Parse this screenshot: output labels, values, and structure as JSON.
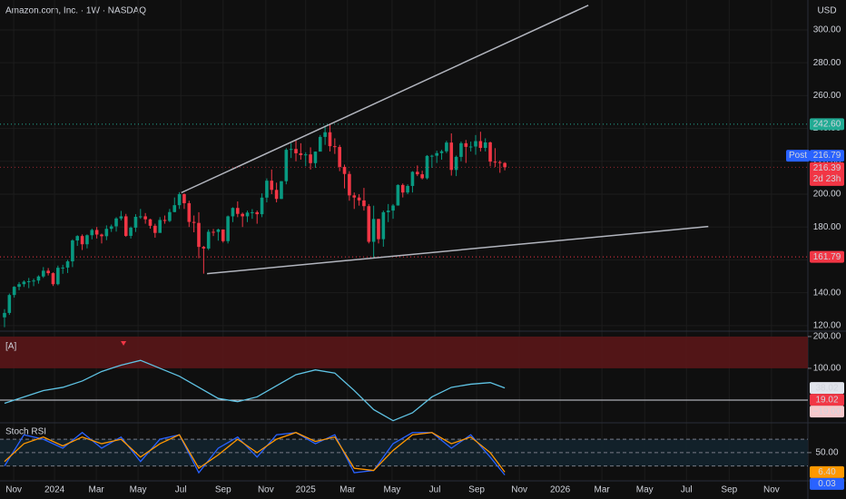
{
  "chart_data": {
    "type": "candlestick",
    "title": "Amazon.com, Inc. · 1W · NASDAQ",
    "currency": "USD",
    "up_color": "#089981",
    "down_color": "#f23645",
    "grid": true,
    "open": [
      125,
      127.7,
      138.6,
      143.6,
      145.2,
      146.7,
      147.0,
      147.4,
      149.9,
      153.4,
      151.9,
      145.2,
      155.2,
      155.3,
      159.1,
      171.8,
      174.5,
      169.5,
      175.0,
      178.2,
      175.4,
      174.4,
      178.9,
      180.4,
      185.2,
      186.5,
      174.6,
      179.6,
      186.2,
      186.5,
      184.7,
      180.75,
      176.4,
      184.3,
      183.7,
      189.1,
      193.3,
      200.0,
      194.5,
      183.1,
      182.5,
      167.9,
      166.9,
      177.1,
      177.0,
      178.5,
      171.4,
      186.5,
      191.6,
      188.0,
      186.5,
      188.8,
      189.0,
      187.8,
      197.9,
      208.2,
      202.6,
      197.1,
      207.9,
      227.0,
      227.5,
      224.9,
      223.75,
      224.2,
      218.9,
      225.9,
      234.85,
      237.7,
      229.2,
      228.7,
      216.6,
      212.3,
      199.25,
      197.95,
      196.2,
      192.7,
      171.0,
      184.9,
      172.6,
      189.0,
      190.0,
      193.1,
      205.6,
      201.0,
      205.0,
      213.6,
      212.1,
      209.7,
      223.3,
      223.4,
      225.0,
      226.1,
      231.4,
      214.75,
      222.7,
      231.0,
      228.8,
      229.0,
      232.3,
      228.15,
      231.5,
      219.8,
      219.5,
      219.0
    ],
    "high": [
      130,
      139.5,
      144,
      146.5,
      147.5,
      149,
      148.6,
      150.6,
      155.6,
      155,
      152.4,
      156.5,
      157,
      160,
      172.5,
      175,
      175.5,
      175.5,
      179,
      180,
      176,
      181,
      181.5,
      186,
      189.8,
      188,
      180.3,
      187.8,
      191,
      188.5,
      185,
      182,
      186,
      187,
      191,
      198,
      201.2,
      200.5,
      196,
      187,
      189,
      168.5,
      178.5,
      178.8,
      179,
      178.5,
      187,
      192,
      195.6,
      188.8,
      190,
      190.9,
      190,
      200.5,
      209.6,
      215,
      207,
      208,
      228,
      231,
      233,
      231,
      225.5,
      228.5,
      226,
      236,
      241.8,
      242.5,
      234,
      230,
      218,
      214,
      201,
      200,
      203.8,
      194,
      193,
      185,
      190,
      194,
      194,
      206,
      206.5,
      206,
      214,
      217.5,
      214.3,
      223.8,
      224,
      226.5,
      227,
      232.5,
      237,
      223.5,
      232,
      233,
      232,
      236,
      238,
      234,
      232,
      228,
      220.5,
      219.5
    ],
    "low": [
      119,
      126.5,
      137,
      141.5,
      143.5,
      142.8,
      144,
      145.5,
      149,
      150.5,
      144.1,
      144.5,
      151.5,
      152,
      155.6,
      168.5,
      166,
      167,
      172.5,
      173,
      170,
      172,
      177,
      177.2,
      184,
      174,
      173,
      177,
      185,
      182,
      179,
      173.5,
      177,
      182,
      183,
      189,
      191,
      191,
      180,
      176.8,
      161.0,
      151.6,
      166,
      174.5,
      171.7,
      170.5,
      170,
      183,
      186,
      180,
      183,
      185,
      182,
      186,
      195,
      200,
      195,
      197,
      206,
      222,
      220,
      221,
      217,
      215,
      216,
      226,
      230,
      226,
      224.5,
      214,
      203.5,
      196,
      191,
      193,
      190,
      170,
      161.4,
      170,
      168,
      183,
      185,
      193,
      198,
      200,
      201,
      211,
      209,
      209,
      216,
      219,
      221,
      225,
      211.3,
      211,
      220,
      219,
      226,
      224,
      226,
      226,
      217,
      216.5,
      213,
      214.5
    ],
    "close": [
      127.7,
      138.6,
      143.6,
      145.2,
      146.7,
      147.0,
      147.4,
      149.9,
      153.4,
      151.9,
      145.2,
      155.2,
      155.3,
      159.1,
      171.8,
      174.5,
      169.5,
      175.0,
      178.2,
      175.4,
      174.4,
      178.9,
      180.4,
      185.2,
      186.5,
      174.6,
      179.6,
      186.2,
      186.5,
      184.7,
      180.75,
      176.4,
      184.3,
      183.7,
      189.1,
      193.3,
      200.0,
      194.5,
      183.1,
      182.5,
      167.9,
      166.9,
      177.1,
      177.0,
      178.5,
      171.4,
      186.5,
      191.6,
      188.0,
      186.5,
      188.8,
      189.0,
      187.8,
      197.9,
      208.2,
      202.6,
      197.1,
      207.9,
      227.0,
      227.5,
      224.9,
      223.75,
      224.2,
      218.9,
      225.9,
      234.85,
      237.7,
      229.2,
      228.7,
      216.6,
      212.3,
      199.25,
      197.95,
      196.2,
      192.7,
      171.0,
      184.9,
      172.6,
      189.0,
      190.0,
      193.1,
      205.6,
      201.0,
      205.0,
      213.6,
      212.1,
      209.7,
      223.3,
      223.4,
      225.0,
      226.1,
      231.4,
      214.75,
      222.7,
      231.0,
      228.8,
      229.0,
      232.3,
      228.15,
      231.5,
      219.8,
      219.5,
      219.0,
      216.39
    ],
    "xlim": [
      -0.93,
      165.4
    ],
    "xticks": [
      {
        "value": 1.9,
        "label": "Nov"
      },
      {
        "value": 10.3,
        "label": "2024"
      },
      {
        "value": 18.9,
        "label": "Mar"
      },
      {
        "value": 27.5,
        "label": "May"
      },
      {
        "value": 36.3,
        "label": "Jul"
      },
      {
        "value": 45.0,
        "label": "Sep"
      },
      {
        "value": 53.8,
        "label": "Nov"
      },
      {
        "value": 62.0,
        "label": "2025"
      },
      {
        "value": 70.6,
        "label": "Mar"
      },
      {
        "value": 79.8,
        "label": "May"
      },
      {
        "value": 88.6,
        "label": "Jul"
      },
      {
        "value": 97.2,
        "label": "Sep"
      },
      {
        "value": 106.0,
        "label": "Nov"
      },
      {
        "value": 114.4,
        "label": "2026"
      },
      {
        "value": 123.0,
        "label": "Mar"
      },
      {
        "value": 131.8,
        "label": "May"
      },
      {
        "value": 140.4,
        "label": "Jul"
      },
      {
        "value": 149.2,
        "label": "Sep"
      },
      {
        "value": 157.9,
        "label": "Nov"
      }
    ],
    "ylim": [
      116.6,
      318.2
    ],
    "yticks": [
      {
        "value": 120,
        "label": "120.00"
      },
      {
        "value": 140,
        "label": "140.00"
      },
      {
        "value": 160,
        "label": "160.00"
      },
      {
        "value": 180,
        "label": "180.00"
      },
      {
        "value": 200,
        "label": "200.00"
      },
      {
        "value": 220,
        "label": "220.00"
      },
      {
        "value": 240,
        "label": "240.00"
      },
      {
        "value": 260,
        "label": "260.00"
      },
      {
        "value": 280,
        "label": "280.00"
      },
      {
        "value": 300,
        "label": "300.00"
      }
    ],
    "levels": [
      {
        "value": 242.6,
        "label": "242.60",
        "color": "#22ab94"
      },
      {
        "value": 161.79,
        "label": "161.79",
        "color": "#f23645"
      }
    ],
    "price_tags": [
      {
        "name": "Post",
        "value": 216.79,
        "label": "216.79",
        "color": "#2962ff"
      },
      {
        "value": 216.39,
        "label": "216.39",
        "note": "2d 23h",
        "color": "#f23645"
      }
    ],
    "trendlines": [
      {
        "x": [
          36.4,
          120.2
        ],
        "y": [
          200.9,
          315
        ],
        "color": "#b2b5be"
      },
      {
        "x": [
          41.7,
          144.9
        ],
        "y": [
          151.6,
          180.3
        ],
        "color": "#b2b5be"
      }
    ],
    "panels": [
      {
        "label": "[A]",
        "ylim": [
          -63,
          217
        ],
        "yticks": [
          {
            "value": 200,
            "label": "200.00"
          },
          {
            "value": 100,
            "label": "100.00"
          }
        ],
        "band": [
          100,
          200
        ],
        "band_color": "#5a1618",
        "hline": 0,
        "series": [
          {
            "x": [
              0,
              4,
              8,
              12,
              16,
              20,
              24,
              28,
              32,
              36,
              40,
              44,
              48,
              52,
              56,
              60,
              64,
              68,
              72,
              76,
              80,
              84,
              88,
              92,
              96,
              100,
              103
            ],
            "values": [
              -10,
              10,
              30,
              40,
              60,
              90,
              110,
              125,
              100,
              75,
              40,
              5,
              -5,
              10,
              45,
              80,
              95,
              85,
              30,
              -30,
              -65,
              -40,
              10,
              40,
              50,
              55,
              38
            ],
            "color": "#5fc3e4"
          }
        ],
        "value_tags": [
          {
            "value": 38.02,
            "label": "38.02",
            "color": "#e0e3eb"
          },
          {
            "value": 19.02,
            "label": "19.02",
            "color": "#f23645"
          },
          {
            "value": -19.0,
            "label": "−19.00",
            "color": "#f7c9cc"
          }
        ]
      },
      {
        "label": "Stoch RSI",
        "ylim": [
          -23.4,
          112.8
        ],
        "yticks": [
          {
            "value": 50,
            "label": "50.00"
          }
        ],
        "band": [
          20,
          80
        ],
        "band_color": "#13232d",
        "hline": 50,
        "series": [
          {
            "x": [
              0,
              4,
              8,
              12,
              16,
              20,
              24,
              28,
              32,
              36,
              40,
              44,
              48,
              52,
              56,
              60,
              64,
              68,
              72,
              76,
              80,
              84,
              88,
              92,
              96,
              100,
              103
            ],
            "values": [
              20,
              90,
              80,
              60,
              95,
              60,
              85,
              30,
              80,
              90,
              5,
              60,
              85,
              40,
              90,
              95,
              70,
              90,
              5,
              10,
              70,
              95,
              95,
              60,
              90,
              40,
              0.03
            ],
            "color": "#2962ff"
          },
          {
            "x": [
              0,
              4,
              8,
              12,
              16,
              20,
              24,
              28,
              32,
              36,
              40,
              44,
              48,
              52,
              56,
              60,
              64,
              68,
              72,
              76,
              80,
              84,
              88,
              92,
              96,
              100,
              103
            ],
            "values": [
              30,
              70,
              85,
              65,
              85,
              70,
              80,
              40,
              70,
              90,
              15,
              45,
              80,
              50,
              80,
              95,
              75,
              85,
              15,
              10,
              55,
              90,
              95,
              70,
              85,
              50,
              6.4
            ],
            "color": "#ff9800"
          }
        ],
        "value_tags": [
          {
            "value": 6.4,
            "label": "6.40",
            "color": "#ff9800"
          },
          {
            "value": 0.03,
            "label": "0.03",
            "color": "#2962ff"
          }
        ]
      }
    ]
  }
}
